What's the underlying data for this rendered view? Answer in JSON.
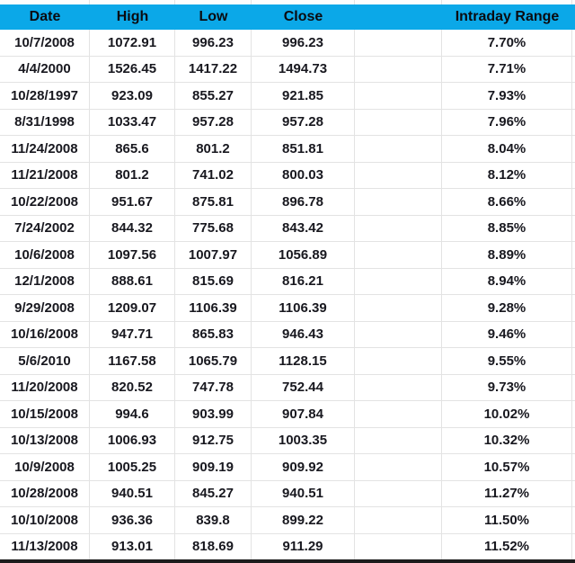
{
  "app": "spreadsheet-table",
  "colors": {
    "header_bg": "#0ba8e8",
    "grid_line": "#e3e3e3",
    "header_text": "#0b0b10",
    "body_text": "#18181f",
    "bottom_bar": "#1d1d1d"
  },
  "header": {
    "columns": [
      "Date",
      "High",
      "Low",
      "Close",
      "",
      "Intraday Range"
    ]
  },
  "table": {
    "rows": [
      [
        "10/7/2008",
        "1072.91",
        "996.23",
        "996.23",
        "",
        "7.70%"
      ],
      [
        "4/4/2000",
        "1526.45",
        "1417.22",
        "1494.73",
        "",
        "7.71%"
      ],
      [
        "10/28/1997",
        "923.09",
        "855.27",
        "921.85",
        "",
        "7.93%"
      ],
      [
        "8/31/1998",
        "1033.47",
        "957.28",
        "957.28",
        "",
        "7.96%"
      ],
      [
        "11/24/2008",
        "865.6",
        "801.2",
        "851.81",
        "",
        "8.04%"
      ],
      [
        "11/21/2008",
        "801.2",
        "741.02",
        "800.03",
        "",
        "8.12%"
      ],
      [
        "10/22/2008",
        "951.67",
        "875.81",
        "896.78",
        "",
        "8.66%"
      ],
      [
        "7/24/2002",
        "844.32",
        "775.68",
        "843.42",
        "",
        "8.85%"
      ],
      [
        "10/6/2008",
        "1097.56",
        "1007.97",
        "1056.89",
        "",
        "8.89%"
      ],
      [
        "12/1/2008",
        "888.61",
        "815.69",
        "816.21",
        "",
        "8.94%"
      ],
      [
        "9/29/2008",
        "1209.07",
        "1106.39",
        "1106.39",
        "",
        "9.28%"
      ],
      [
        "10/16/2008",
        "947.71",
        "865.83",
        "946.43",
        "",
        "9.46%"
      ],
      [
        "5/6/2010",
        "1167.58",
        "1065.79",
        "1128.15",
        "",
        "9.55%"
      ],
      [
        "11/20/2008",
        "820.52",
        "747.78",
        "752.44",
        "",
        "9.73%"
      ],
      [
        "10/15/2008",
        "994.6",
        "903.99",
        "907.84",
        "",
        "10.02%"
      ],
      [
        "10/13/2008",
        "1006.93",
        "912.75",
        "1003.35",
        "",
        "10.32%"
      ],
      [
        "10/9/2008",
        "1005.25",
        "909.19",
        "909.92",
        "",
        "10.57%"
      ],
      [
        "10/28/2008",
        "940.51",
        "845.27",
        "940.51",
        "",
        "11.27%"
      ],
      [
        "10/10/2008",
        "936.36",
        "839.8",
        "899.22",
        "",
        "11.50%"
      ],
      [
        "11/13/2008",
        "913.01",
        "818.69",
        "911.29",
        "",
        "11.52%"
      ]
    ],
    "column_keys": [
      "date",
      "high",
      "low",
      "close",
      "empty",
      "intraday-range"
    ]
  }
}
